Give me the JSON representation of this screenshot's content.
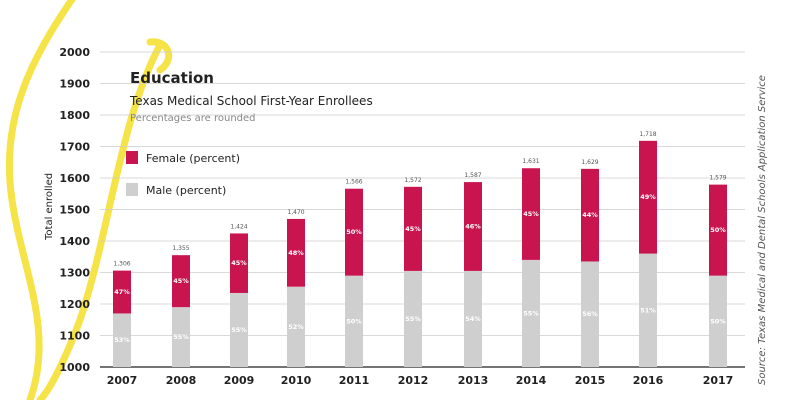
{
  "chart_data": {
    "type": "bar",
    "stacked": true,
    "title": "Education",
    "subtitle": "Texas Medical School First-Year Enrollees",
    "note": "Percentages are rounded",
    "ylabel": "Total enrolled",
    "source": "Source: Texas Medical and Dental Schools Application Service",
    "ylim": [
      1000,
      2000
    ],
    "yticks": [
      1000,
      1100,
      1200,
      1300,
      1400,
      1500,
      1600,
      1700,
      1800,
      1900,
      2000
    ],
    "categories": [
      "2007",
      "2008",
      "2009",
      "2010",
      "2011",
      "2012",
      "2013",
      "2014",
      "2015",
      "2016",
      "2017"
    ],
    "totals": [
      1306,
      1355,
      1424,
      1470,
      1566,
      1572,
      1587,
      1631,
      1629,
      1718,
      1579
    ],
    "total_labels": [
      "1,306",
      "1,355",
      "1,424",
      "1,470",
      "1,566",
      "1,572",
      "1,587",
      "1,631",
      "1,629",
      "1,718",
      "1,579"
    ],
    "series": [
      {
        "name": "Male (percent)",
        "color": "#cfcfcf",
        "percent_labels": [
          "53%",
          "55%",
          "55%",
          "52%",
          "50%",
          "55%",
          "54%",
          "55%",
          "56%",
          "51%",
          "50%"
        ],
        "boundary_values": [
          1170,
          1190,
          1235,
          1255,
          1290,
          1305,
          1305,
          1340,
          1335,
          1360,
          1290
        ]
      },
      {
        "name": "Female (percent)",
        "color": "#c8144f",
        "percent_labels": [
          "47%",
          "45%",
          "45%",
          "48%",
          "50%",
          "45%",
          "46%",
          "45%",
          "44%",
          "49%",
          "50%"
        ]
      }
    ],
    "legend": [
      {
        "label": "Female (percent)",
        "color": "#c8144f"
      },
      {
        "label": "Male (percent)",
        "color": "#cfcfcf"
      }
    ]
  }
}
